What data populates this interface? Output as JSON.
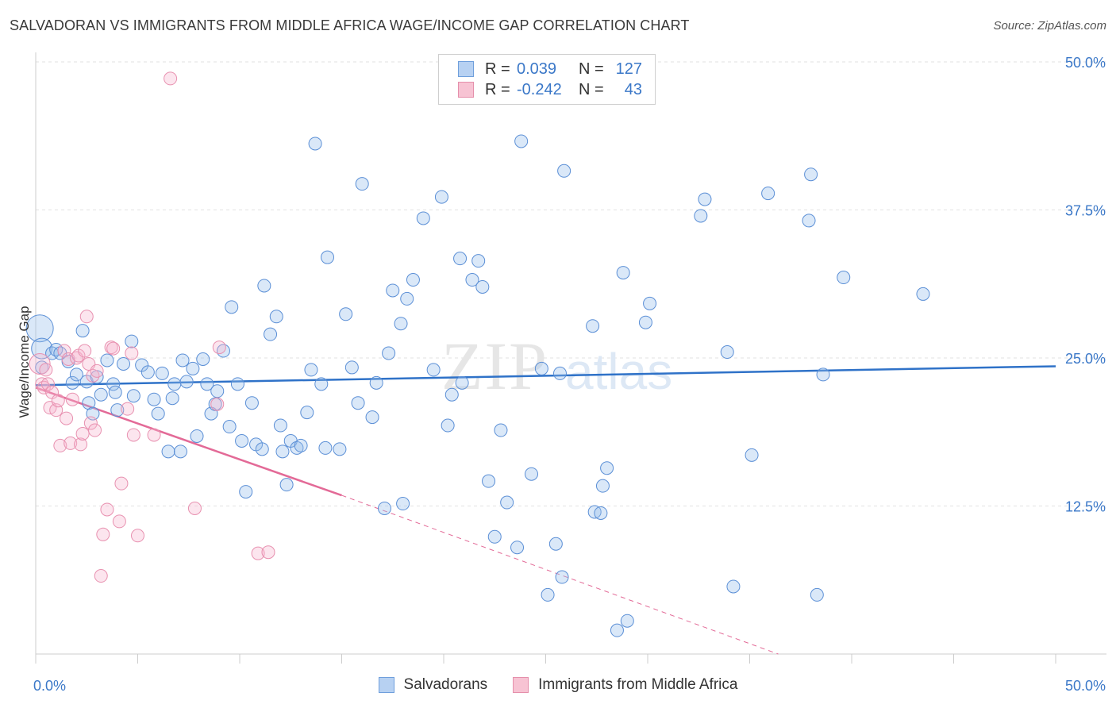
{
  "title": "SALVADORAN VS IMMIGRANTS FROM MIDDLE AFRICA WAGE/INCOME GAP CORRELATION CHART",
  "source": "Source: ZipAtlas.com",
  "watermark": {
    "zip": "ZIP",
    "atlas": "atlas"
  },
  "legend": {
    "r_label": "R =",
    "n_label": "N =",
    "rows": [
      {
        "r": "0.039",
        "n": "127",
        "fill": "#b7d1f2",
        "stroke": "#6f9fdc"
      },
      {
        "r": "-0.242",
        "n": "43",
        "fill": "#f7c3d3",
        "stroke": "#e58fab"
      }
    ]
  },
  "bottom_legend": [
    {
      "label": "Salvadorans",
      "fill": "#b7d1f2",
      "stroke": "#6f9fdc"
    },
    {
      "label": "Immigrants from Middle Africa",
      "fill": "#f7c3d3",
      "stroke": "#e58fab"
    }
  ],
  "chart_data": {
    "type": "scatter",
    "title": "SALVADORAN VS IMMIGRANTS FROM MIDDLE AFRICA WAGE/INCOME GAP CORRELATION CHART",
    "xlabel": "",
    "ylabel": "Wage/Income Gap",
    "xlim": [
      0,
      50
    ],
    "ylim": [
      0,
      50
    ],
    "x_tick_labels": [
      "0.0%",
      "50.0%"
    ],
    "y_ticks": [
      12.5,
      25.0,
      37.5,
      50.0
    ],
    "y_tick_labels": [
      "12.5%",
      "25.0%",
      "37.5%",
      "50.0%"
    ],
    "grid": "horizontal dashed",
    "legend_position": "top-center",
    "colors": {
      "blue": "#4a86d4",
      "blue_line": "#2f72c8",
      "pink": "#e991b0",
      "pink_line": "#e36a97"
    },
    "series": [
      {
        "name": "Salvadorans",
        "color": "#4a86d4",
        "trend": {
          "x0": 0,
          "y0": 22.7,
          "x1": 50,
          "y1": 24.3
        },
        "points": [
          [
            0.2,
            27.5
          ],
          [
            0.3,
            25.8
          ],
          [
            0.3,
            24.2
          ],
          [
            0.8,
            25.4
          ],
          [
            1.0,
            25.7
          ],
          [
            1.2,
            25.4
          ],
          [
            1.6,
            24.7
          ],
          [
            1.8,
            22.9
          ],
          [
            2.0,
            23.6
          ],
          [
            2.3,
            27.3
          ],
          [
            2.5,
            23.0
          ],
          [
            2.6,
            21.2
          ],
          [
            3.5,
            24.8
          ],
          [
            2.8,
            20.3
          ],
          [
            3.0,
            23.4
          ],
          [
            3.2,
            21.9
          ],
          [
            3.8,
            22.8
          ],
          [
            3.9,
            22.1
          ],
          [
            4.0,
            20.6
          ],
          [
            4.3,
            24.5
          ],
          [
            4.7,
            26.4
          ],
          [
            4.8,
            21.8
          ],
          [
            5.2,
            24.4
          ],
          [
            5.5,
            23.8
          ],
          [
            5.8,
            21.5
          ],
          [
            6.0,
            20.3
          ],
          [
            6.2,
            23.7
          ],
          [
            6.5,
            17.1
          ],
          [
            6.7,
            21.6
          ],
          [
            6.8,
            22.8
          ],
          [
            7.1,
            17.1
          ],
          [
            7.2,
            24.8
          ],
          [
            7.4,
            23.0
          ],
          [
            7.7,
            24.1
          ],
          [
            7.9,
            18.4
          ],
          [
            8.2,
            24.9
          ],
          [
            8.4,
            22.8
          ],
          [
            8.6,
            20.3
          ],
          [
            8.8,
            21.1
          ],
          [
            8.9,
            22.2
          ],
          [
            9.2,
            25.6
          ],
          [
            9.5,
            19.2
          ],
          [
            9.6,
            29.3
          ],
          [
            9.9,
            22.8
          ],
          [
            10.1,
            18.0
          ],
          [
            10.3,
            13.7
          ],
          [
            10.6,
            21.2
          ],
          [
            10.8,
            17.7
          ],
          [
            11.1,
            17.3
          ],
          [
            11.2,
            31.1
          ],
          [
            11.5,
            27.0
          ],
          [
            11.8,
            28.5
          ],
          [
            12.0,
            19.3
          ],
          [
            12.1,
            17.1
          ],
          [
            12.3,
            14.3
          ],
          [
            12.5,
            18.0
          ],
          [
            12.8,
            17.4
          ],
          [
            13.0,
            17.6
          ],
          [
            13.3,
            20.4
          ],
          [
            13.5,
            24.0
          ],
          [
            13.7,
            43.1
          ],
          [
            14.0,
            22.8
          ],
          [
            14.3,
            33.5
          ],
          [
            14.2,
            17.4
          ],
          [
            14.9,
            17.3
          ],
          [
            15.2,
            28.7
          ],
          [
            15.5,
            24.2
          ],
          [
            15.8,
            21.2
          ],
          [
            16.0,
            39.7
          ],
          [
            16.5,
            20.0
          ],
          [
            16.7,
            22.9
          ],
          [
            17.1,
            12.3
          ],
          [
            17.3,
            25.4
          ],
          [
            17.5,
            30.7
          ],
          [
            17.9,
            27.9
          ],
          [
            18.0,
            12.7
          ],
          [
            18.2,
            30.0
          ],
          [
            18.5,
            31.6
          ],
          [
            19.0,
            36.8
          ],
          [
            19.5,
            24.0
          ],
          [
            19.9,
            38.6
          ],
          [
            20.2,
            19.3
          ],
          [
            20.4,
            21.9
          ],
          [
            20.9,
            22.9
          ],
          [
            20.8,
            33.4
          ],
          [
            21.4,
            31.6
          ],
          [
            21.7,
            33.2
          ],
          [
            21.9,
            31.0
          ],
          [
            22.2,
            14.6
          ],
          [
            22.5,
            9.9
          ],
          [
            22.8,
            18.9
          ],
          [
            23.1,
            12.8
          ],
          [
            23.6,
            9.0
          ],
          [
            23.8,
            43.3
          ],
          [
            24.3,
            15.2
          ],
          [
            24.8,
            24.1
          ],
          [
            25.1,
            5.0
          ],
          [
            25.5,
            9.3
          ],
          [
            25.7,
            23.7
          ],
          [
            25.8,
            6.5
          ],
          [
            25.9,
            40.8
          ],
          [
            26.3,
            48.3
          ],
          [
            27.3,
            27.7
          ],
          [
            27.4,
            12.0
          ],
          [
            27.7,
            11.9
          ],
          [
            27.8,
            14.2
          ],
          [
            28.0,
            15.7
          ],
          [
            28.5,
            2.0
          ],
          [
            28.8,
            32.2
          ],
          [
            29.0,
            2.8
          ],
          [
            29.9,
            28.0
          ],
          [
            30.1,
            29.6
          ],
          [
            32.6,
            37.0
          ],
          [
            32.8,
            38.4
          ],
          [
            33.9,
            25.5
          ],
          [
            34.2,
            5.7
          ],
          [
            35.1,
            16.8
          ],
          [
            35.9,
            38.9
          ],
          [
            37.9,
            36.6
          ],
          [
            38.0,
            40.5
          ],
          [
            38.3,
            5.0
          ],
          [
            38.6,
            23.6
          ],
          [
            39.6,
            31.8
          ],
          [
            43.5,
            30.4
          ]
        ]
      },
      {
        "name": "Immigrants from Middle Africa",
        "color": "#e991b0",
        "trend": {
          "x0": 0,
          "y0": 22.5,
          "x1": 15,
          "y1": 13.4,
          "dash_x1": 36.4,
          "dash_y1": 0
        },
        "points": [
          [
            0.2,
            24.5
          ],
          [
            0.3,
            22.8
          ],
          [
            0.4,
            22.5
          ],
          [
            0.5,
            24.0
          ],
          [
            0.6,
            22.8
          ],
          [
            0.7,
            20.8
          ],
          [
            0.8,
            22.1
          ],
          [
            1.0,
            20.6
          ],
          [
            1.1,
            21.4
          ],
          [
            1.2,
            17.6
          ],
          [
            1.4,
            25.6
          ],
          [
            1.5,
            19.9
          ],
          [
            1.6,
            24.9
          ],
          [
            1.7,
            17.8
          ],
          [
            1.8,
            21.5
          ],
          [
            2.0,
            25.0
          ],
          [
            2.1,
            25.2
          ],
          [
            2.2,
            17.7
          ],
          [
            2.3,
            18.6
          ],
          [
            2.4,
            25.6
          ],
          [
            2.5,
            28.5
          ],
          [
            2.6,
            24.5
          ],
          [
            2.7,
            19.5
          ],
          [
            2.8,
            23.5
          ],
          [
            2.9,
            18.9
          ],
          [
            3.0,
            23.9
          ],
          [
            3.2,
            6.6
          ],
          [
            3.3,
            10.1
          ],
          [
            3.5,
            12.2
          ],
          [
            3.7,
            25.9
          ],
          [
            3.8,
            25.8
          ],
          [
            4.1,
            11.2
          ],
          [
            4.2,
            14.4
          ],
          [
            4.5,
            20.7
          ],
          [
            4.7,
            25.4
          ],
          [
            4.8,
            18.5
          ],
          [
            5.0,
            10.0
          ],
          [
            5.8,
            18.5
          ],
          [
            6.6,
            48.6
          ],
          [
            7.8,
            12.3
          ],
          [
            8.9,
            21.1
          ],
          [
            9.0,
            25.9
          ],
          [
            10.9,
            8.5
          ],
          [
            11.4,
            8.6
          ]
        ]
      }
    ]
  }
}
